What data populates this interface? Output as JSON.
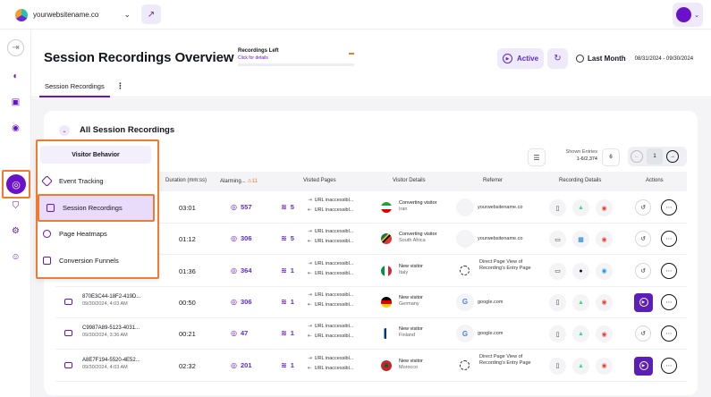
{
  "topbar": {
    "site_name": "yourwebsitename.co"
  },
  "header": {
    "title": "Session Recordings Overview",
    "recordings_left_title": "Recordings Left",
    "recordings_left_link": "Click for details",
    "status_label": "Active",
    "range_label": "Last Month",
    "range_value": "08/31/2024 - 09/30/2024"
  },
  "tabs": [
    {
      "label": "Session Recordings"
    }
  ],
  "card": {
    "title": "All Session Recordings",
    "entries_label": "Shown Entries",
    "entries_value": "1-6/2,374",
    "page_size": "6",
    "page": "1"
  },
  "columns": {
    "duration": "Duration (mm:ss)",
    "alarming": "Alarming...",
    "alarming_count": "11",
    "visited_pages": "Visited Pages",
    "visitor_details": "Visitor Details",
    "referrer": "Referrer",
    "recording_details": "Recording Details",
    "actions": "Actions"
  },
  "menu": {
    "header": "Visitor Behavior",
    "items": [
      {
        "label": "Event Tracking"
      },
      {
        "label": "Session Recordings"
      },
      {
        "label": "Page Heatmaps"
      },
      {
        "label": "Conversion Funnels"
      }
    ]
  },
  "rows": [
    {
      "id": "",
      "date": "",
      "duration": "03:01",
      "alarming": "557",
      "pages": "5",
      "url1": "URL inaccessibl...",
      "url2": "URL inaccessibl...",
      "visitor_type": "Converting visitor",
      "country": "Iran",
      "flag": "iran",
      "referrer": "yourwebsitename.co",
      "ref_kind": "blank",
      "device": "mobile",
      "os": "android",
      "browser": "chrome",
      "play": false
    },
    {
      "id": "",
      "date": "",
      "duration": "01:12",
      "alarming": "306",
      "pages": "5",
      "url1": "URL inaccessibl...",
      "url2": "URL inaccessibl...",
      "visitor_type": "Converting visitor",
      "country": "South Africa",
      "flag": "za",
      "referrer": "yourwebsitename.co",
      "ref_kind": "blank",
      "device": "desktop",
      "os": "windows",
      "browser": "chrome",
      "play": false
    },
    {
      "id": "",
      "date": "",
      "duration": "01:36",
      "alarming": "364",
      "pages": "1",
      "url1": "URL inaccessibl...",
      "url2": "URL inaccessibl...",
      "visitor_type": "New visitor",
      "country": "Italy",
      "flag": "it",
      "referrer": "Direct Page View of Recording's Entry Page",
      "ref_kind": "direct",
      "device": "desktop",
      "os": "apple",
      "browser": "safari",
      "play": false
    },
    {
      "id": "870E3C44-18F2-419D...",
      "date": "09/30/2024, 4:03 AM",
      "duration": "00:50",
      "alarming": "306",
      "pages": "1",
      "url1": "URL inaccessibl...",
      "url2": "URL inaccessibl...",
      "visitor_type": "New visitor",
      "country": "Germany",
      "flag": "de",
      "referrer": "google.com",
      "ref_kind": "google",
      "device": "mobile",
      "os": "android",
      "browser": "chrome",
      "play": true
    },
    {
      "id": "C9987A89-5123-4031...",
      "date": "09/30/2024, 3:36 AM",
      "duration": "00:21",
      "alarming": "47",
      "pages": "1",
      "url1": "URL inaccessibl...",
      "url2": "URL inaccessibl...",
      "visitor_type": "New visitor",
      "country": "Finland",
      "flag": "fi",
      "referrer": "google.com",
      "ref_kind": "google",
      "device": "mobile",
      "os": "android",
      "browser": "chrome",
      "play": false
    },
    {
      "id": "A8E7F194-5520-4E52...",
      "date": "09/30/2024, 4:03 AM",
      "duration": "02:32",
      "alarming": "201",
      "pages": "1",
      "url1": "URL inaccessibl...",
      "url2": "URL inaccessibl...",
      "visitor_type": "New visitor",
      "country": "Morocco",
      "flag": "ma",
      "referrer": "Direct Page View of Recording's Entry Page",
      "ref_kind": "direct",
      "device": "mobile",
      "os": "android",
      "browser": "chrome",
      "play": true
    }
  ]
}
